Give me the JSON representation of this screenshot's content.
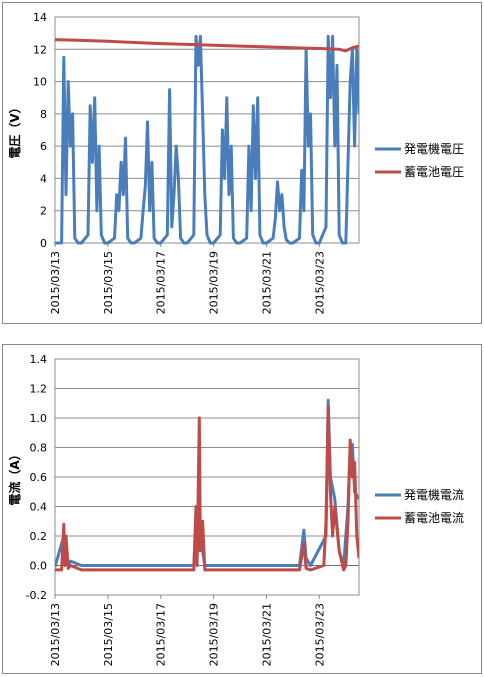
{
  "chart_data": [
    {
      "type": "line",
      "ylabel": "電圧（V）",
      "ylim": [
        0,
        14
      ],
      "yticks": [
        0,
        2,
        4,
        6,
        8,
        10,
        12,
        14
      ],
      "x_range": [
        "2015/03/13",
        "2015/03/24"
      ],
      "x_ticks": [
        "2015/03/13",
        "2015/03/15",
        "2015/03/17",
        "2015/03/19",
        "2015/03/21",
        "2015/03/23"
      ],
      "grid": true,
      "legend_position": "right",
      "series": [
        {
          "name": "発電機電圧",
          "color": "#4a7ebb",
          "points": [
            [
              "2015/03/13 00:00",
              0
            ],
            [
              "2015/03/13 06:00",
              0
            ],
            [
              "2015/03/13 08:00",
              11.5
            ],
            [
              "2015/03/13 10:00",
              3
            ],
            [
              "2015/03/13 12:00",
              10
            ],
            [
              "2015/03/13 14:00",
              6
            ],
            [
              "2015/03/13 16:00",
              8
            ],
            [
              "2015/03/13 18:00",
              0.3
            ],
            [
              "2015/03/13 21:00",
              0
            ],
            [
              "2015/03/14 00:00",
              0
            ],
            [
              "2015/03/14 06:00",
              0.5
            ],
            [
              "2015/03/14 08:00",
              8.5
            ],
            [
              "2015/03/14 10:00",
              5
            ],
            [
              "2015/03/14 12:00",
              9
            ],
            [
              "2015/03/14 14:00",
              2
            ],
            [
              "2015/03/14 16:00",
              6
            ],
            [
              "2015/03/14 18:00",
              0.5
            ],
            [
              "2015/03/14 21:00",
              0
            ],
            [
              "2015/03/15 00:00",
              0
            ],
            [
              "2015/03/15 06:00",
              0.3
            ],
            [
              "2015/03/15 08:00",
              3
            ],
            [
              "2015/03/15 10:00",
              2
            ],
            [
              "2015/03/15 12:00",
              5
            ],
            [
              "2015/03/15 14:00",
              3
            ],
            [
              "2015/03/15 16:00",
              6.5
            ],
            [
              "2015/03/15 18:00",
              0.3
            ],
            [
              "2015/03/15 21:00",
              0
            ],
            [
              "2015/03/16 00:00",
              0
            ],
            [
              "2015/03/16 06:00",
              0.3
            ],
            [
              "2015/03/16 08:00",
              2
            ],
            [
              "2015/03/16 10:00",
              3.5
            ],
            [
              "2015/03/16 12:00",
              7.5
            ],
            [
              "2015/03/16 14:00",
              2
            ],
            [
              "2015/03/16 16:00",
              5
            ],
            [
              "2015/03/16 18:00",
              0.3
            ],
            [
              "2015/03/16 21:00",
              0
            ],
            [
              "2015/03/17 00:00",
              0
            ],
            [
              "2015/03/17 06:00",
              0.5
            ],
            [
              "2015/03/17 08:00",
              9.5
            ],
            [
              "2015/03/17 10:00",
              1
            ],
            [
              "2015/03/17 12:00",
              3
            ],
            [
              "2015/03/17 14:00",
              6
            ],
            [
              "2015/03/17 16:00",
              4
            ],
            [
              "2015/03/17 18:00",
              0.3
            ],
            [
              "2015/03/17 21:00",
              0
            ],
            [
              "2015/03/18 00:00",
              0
            ],
            [
              "2015/03/18 06:00",
              0.5
            ],
            [
              "2015/03/18 08:00",
              12.8
            ],
            [
              "2015/03/18 10:00",
              11
            ],
            [
              "2015/03/18 12:00",
              12.8
            ],
            [
              "2015/03/18 14:00",
              8
            ],
            [
              "2015/03/18 16:00",
              3
            ],
            [
              "2015/03/18 18:00",
              0.5
            ],
            [
              "2015/03/18 21:00",
              0
            ],
            [
              "2015/03/19 00:00",
              0
            ],
            [
              "2015/03/19 06:00",
              0.5
            ],
            [
              "2015/03/19 08:00",
              7
            ],
            [
              "2015/03/19 10:00",
              4
            ],
            [
              "2015/03/19 12:00",
              9
            ],
            [
              "2015/03/19 14:00",
              3
            ],
            [
              "2015/03/19 16:00",
              6
            ],
            [
              "2015/03/19 18:00",
              0.3
            ],
            [
              "2015/03/19 21:00",
              0
            ],
            [
              "2015/03/20 00:00",
              0
            ],
            [
              "2015/03/20 06:00",
              0.3
            ],
            [
              "2015/03/20 08:00",
              6
            ],
            [
              "2015/03/20 10:00",
              2
            ],
            [
              "2015/03/20 12:00",
              8.5
            ],
            [
              "2015/03/20 14:00",
              4
            ],
            [
              "2015/03/20 16:00",
              9
            ],
            [
              "2015/03/20 18:00",
              0.5
            ],
            [
              "2015/03/20 21:00",
              0
            ],
            [
              "2015/03/21 00:00",
              0
            ],
            [
              "2015/03/21 06:00",
              0.3
            ],
            [
              "2015/03/21 08:00",
              1.5
            ],
            [
              "2015/03/21 10:00",
              3.8
            ],
            [
              "2015/03/21 12:00",
              2
            ],
            [
              "2015/03/21 14:00",
              3
            ],
            [
              "2015/03/21 16:00",
              1
            ],
            [
              "2015/03/21 18:00",
              0.2
            ],
            [
              "2015/03/21 21:00",
              0
            ],
            [
              "2015/03/22 00:00",
              0
            ],
            [
              "2015/03/22 06:00",
              0.3
            ],
            [
              "2015/03/22 08:00",
              4.5
            ],
            [
              "2015/03/22 10:00",
              2
            ],
            [
              "2015/03/22 12:00",
              12
            ],
            [
              "2015/03/22 14:00",
              6
            ],
            [
              "2015/03/22 16:00",
              8
            ],
            [
              "2015/03/22 18:00",
              0.5
            ],
            [
              "2015/03/22 21:00",
              0
            ],
            [
              "2015/03/23 00:00",
              0
            ],
            [
              "2015/03/23 06:00",
              1
            ],
            [
              "2015/03/23 08:00",
              12.8
            ],
            [
              "2015/03/23 10:00",
              9
            ],
            [
              "2015/03/23 12:00",
              12.8
            ],
            [
              "2015/03/23 14:00",
              6
            ],
            [
              "2015/03/23 16:00",
              11
            ],
            [
              "2015/03/23 18:00",
              0.5
            ],
            [
              "2015/03/23 21:00",
              0
            ],
            [
              "2015/03/24 00:00",
              0
            ],
            [
              "2015/03/24 04:00",
              10
            ],
            [
              "2015/03/24 06:00",
              12
            ],
            [
              "2015/03/24 08:00",
              6
            ],
            [
              "2015/03/24 10:00",
              12
            ],
            [
              "2015/03/24 12:00",
              8
            ]
          ]
        },
        {
          "name": "蓄電池電圧",
          "color": "#be4b48",
          "points": [
            [
              "2015/03/13 00:00",
              12.6
            ],
            [
              "2015/03/14 00:00",
              12.55
            ],
            [
              "2015/03/15 00:00",
              12.5
            ],
            [
              "2015/03/16 00:00",
              12.42
            ],
            [
              "2015/03/17 00:00",
              12.35
            ],
            [
              "2015/03/18 00:00",
              12.3
            ],
            [
              "2015/03/19 00:00",
              12.25
            ],
            [
              "2015/03/20 00:00",
              12.2
            ],
            [
              "2015/03/21 00:00",
              12.15
            ],
            [
              "2015/03/22 00:00",
              12.1
            ],
            [
              "2015/03/23 00:00",
              12.05
            ],
            [
              "2015/03/23 18:00",
              12.0
            ],
            [
              "2015/03/24 00:00",
              11.9
            ],
            [
              "2015/03/24 06:00",
              12.1
            ],
            [
              "2015/03/24 12:00",
              12.2
            ]
          ]
        }
      ]
    },
    {
      "type": "line",
      "ylabel": "電流（A）",
      "ylim": [
        -0.2,
        1.4
      ],
      "yticks": [
        -0.2,
        0,
        0.2,
        0.4,
        0.6,
        0.8,
        1.0,
        1.2,
        1.4
      ],
      "x_range": [
        "2015/03/13",
        "2015/03/24"
      ],
      "x_ticks": [
        "2015/03/13",
        "2015/03/15",
        "2015/03/17",
        "2015/03/19",
        "2015/03/21",
        "2015/03/23"
      ],
      "grid": true,
      "legend_position": "right",
      "series": [
        {
          "name": "発電機電流",
          "color": "#4a7ebb",
          "points": [
            [
              "2015/03/13 00:00",
              -0.01
            ],
            [
              "2015/03/13 08:00",
              0.2
            ],
            [
              "2015/03/13 12:00",
              0.0
            ],
            [
              "2015/03/13 14:00",
              0.03
            ],
            [
              "2015/03/14 00:00",
              0.0
            ],
            [
              "2015/03/15 00:00",
              0.0
            ],
            [
              "2015/03/16 00:00",
              0.0
            ],
            [
              "2015/03/17 00:00",
              0.0
            ],
            [
              "2015/03/17 12:00",
              0.0
            ],
            [
              "2015/03/18 06:00",
              0.0
            ],
            [
              "2015/03/18 08:00",
              0.3
            ],
            [
              "2015/03/18 10:00",
              0.1
            ],
            [
              "2015/03/18 12:00",
              0.2
            ],
            [
              "2015/03/18 16:00",
              0.0
            ],
            [
              "2015/03/19 00:00",
              0.0
            ],
            [
              "2015/03/20 00:00",
              0.0
            ],
            [
              "2015/03/21 00:00",
              0.0
            ],
            [
              "2015/03/22 06:00",
              0.0
            ],
            [
              "2015/03/22 10:00",
              0.24
            ],
            [
              "2015/03/22 12:00",
              0.05
            ],
            [
              "2015/03/22 16:00",
              0.0
            ],
            [
              "2015/03/23 06:00",
              0.2
            ],
            [
              "2015/03/23 08:00",
              1.12
            ],
            [
              "2015/03/23 10:00",
              0.6
            ],
            [
              "2015/03/23 14:00",
              0.45
            ],
            [
              "2015/03/23 18:00",
              0.1
            ],
            [
              "2015/03/23 22:00",
              0.0
            ],
            [
              "2015/03/24 02:00",
              0.4
            ],
            [
              "2015/03/24 04:00",
              0.8
            ],
            [
              "2015/03/24 06:00",
              0.82
            ],
            [
              "2015/03/24 08:00",
              0.5
            ],
            [
              "2015/03/24 12:00",
              0.45
            ]
          ]
        },
        {
          "name": "蓄電池電流",
          "color": "#be4b48",
          "points": [
            [
              "2015/03/13 00:00",
              -0.03
            ],
            [
              "2015/03/13 06:00",
              -0.03
            ],
            [
              "2015/03/13 08:00",
              0.28
            ],
            [
              "2015/03/13 09:00",
              0.0
            ],
            [
              "2015/03/13 10:00",
              0.2
            ],
            [
              "2015/03/13 12:00",
              -0.02
            ],
            [
              "2015/03/13 14:00",
              0.0
            ],
            [
              "2015/03/14 00:00",
              -0.03
            ],
            [
              "2015/03/15 00:00",
              -0.03
            ],
            [
              "2015/03/16 00:00",
              -0.03
            ],
            [
              "2015/03/17 00:00",
              -0.03
            ],
            [
              "2015/03/18 00:00",
              -0.03
            ],
            [
              "2015/03/18 06:00",
              -0.03
            ],
            [
              "2015/03/18 08:00",
              0.4
            ],
            [
              "2015/03/18 09:00",
              0.0
            ],
            [
              "2015/03/18 11:00",
              1.0
            ],
            [
              "2015/03/18 12:00",
              0.1
            ],
            [
              "2015/03/18 14:00",
              0.3
            ],
            [
              "2015/03/18 16:00",
              -0.03
            ],
            [
              "2015/03/19 00:00",
              -0.03
            ],
            [
              "2015/03/20 00:00",
              -0.03
            ],
            [
              "2015/03/21 00:00",
              -0.03
            ],
            [
              "2015/03/22 06:00",
              -0.03
            ],
            [
              "2015/03/22 10:00",
              0.15
            ],
            [
              "2015/03/22 12:00",
              -0.02
            ],
            [
              "2015/03/22 16:00",
              -0.03
            ],
            [
              "2015/03/23 04:00",
              0.0
            ],
            [
              "2015/03/23 06:00",
              0.3
            ],
            [
              "2015/03/23 08:00",
              1.08
            ],
            [
              "2015/03/23 10:00",
              0.5
            ],
            [
              "2015/03/23 12:00",
              0.2
            ],
            [
              "2015/03/23 14:00",
              0.4
            ],
            [
              "2015/03/23 18:00",
              0.1
            ],
            [
              "2015/03/23 22:00",
              -0.03
            ],
            [
              "2015/03/24 00:00",
              0.0
            ],
            [
              "2015/03/24 02:00",
              0.3
            ],
            [
              "2015/03/24 04:00",
              0.85
            ],
            [
              "2015/03/24 06:00",
              0.6
            ],
            [
              "2015/03/24 08:00",
              0.7
            ],
            [
              "2015/03/24 10:00",
              0.2
            ],
            [
              "2015/03/24 12:00",
              0.05
            ]
          ]
        }
      ]
    }
  ]
}
